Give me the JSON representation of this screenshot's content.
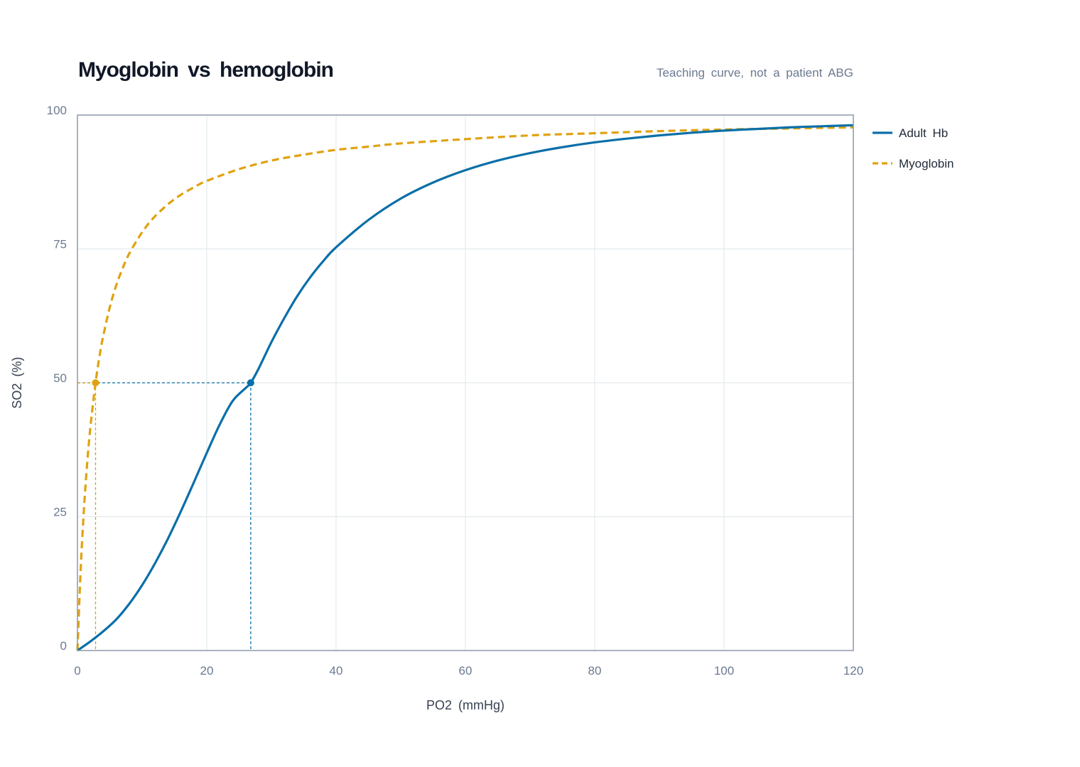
{
  "chart_data": {
    "type": "line",
    "title": "Myoglobin vs hemoglobin",
    "subtitle": "Teaching curve, not a patient ABG",
    "xlabel": "PO2 (mmHg)",
    "ylabel": "SO2 (%)",
    "xlim": [
      0,
      120
    ],
    "ylim": [
      0,
      100
    ],
    "xticks": [
      "0",
      "20",
      "40",
      "60",
      "80",
      "100",
      "120"
    ],
    "yticks": [
      "0",
      "25",
      "50",
      "75",
      "100"
    ],
    "grid": true,
    "legend_position": "right",
    "series": [
      {
        "name": "Adult Hb",
        "style": "solid",
        "color": "#0a6fa8",
        "p50": 26.8,
        "x": [
          0,
          2,
          4,
          6,
          8,
          10,
          12,
          14,
          16,
          18,
          20,
          22,
          24,
          26,
          26.8,
          28,
          30,
          32,
          34,
          36,
          38,
          40,
          45,
          50,
          55,
          60,
          65,
          70,
          75,
          80,
          85,
          90,
          95,
          100,
          105,
          110,
          115,
          120
        ],
        "values": [
          0,
          1.7,
          3.6,
          5.8,
          8.7,
          12.2,
          16.3,
          20.9,
          26.0,
          31.4,
          36.9,
          42.2,
          46.6,
          49.0,
          50.0,
          52.6,
          57.6,
          62.1,
          66.2,
          69.7,
          72.7,
          75.3,
          80.4,
          84.4,
          87.4,
          89.7,
          91.5,
          92.9,
          94.0,
          94.9,
          95.6,
          96.2,
          96.7,
          97.1,
          97.4,
          97.7,
          97.9,
          98.1
        ]
      },
      {
        "name": "Myoglobin",
        "style": "dashed",
        "color": "#e0a20f",
        "p50": 2.8,
        "x": [
          0,
          0.5,
          1,
          1.5,
          2,
          2.8,
          3.5,
          4,
          5,
          6,
          7,
          8,
          10,
          12,
          15,
          18,
          20,
          25,
          30,
          35,
          40,
          45,
          50,
          60,
          70,
          80,
          90,
          100,
          110,
          120
        ],
        "values": [
          0,
          15.2,
          26.3,
          34.9,
          41.7,
          50.0,
          55.6,
          58.8,
          64.1,
          68.2,
          71.4,
          74.1,
          78.1,
          81.1,
          84.3,
          86.5,
          87.7,
          89.9,
          91.5,
          92.6,
          93.5,
          94.1,
          94.7,
          95.5,
          96.2,
          96.6,
          97.0,
          97.3,
          97.5,
          97.7
        ]
      }
    ],
    "markers": [
      {
        "series": "Adult Hb",
        "x": 26.8,
        "y": 50,
        "color": "#0a6fa8"
      },
      {
        "series": "Myoglobin",
        "x": 2.8,
        "y": 50,
        "color": "#e0a20f"
      }
    ],
    "colors": {
      "frame": "#8c99ab",
      "grid": "#e3ebee",
      "hb": "#0a6fa8",
      "mb": "#e0a20f"
    }
  }
}
